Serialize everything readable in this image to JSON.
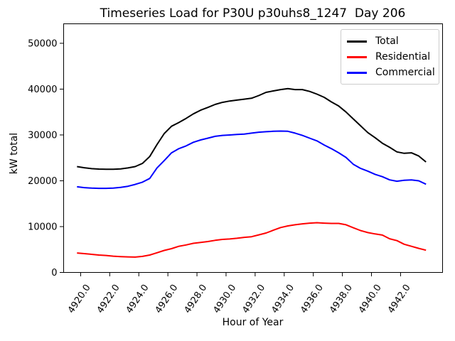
{
  "figure": {
    "title": "Timeseries Load for P30U p30uhs8_1247  Day 206"
  },
  "axes": {
    "xlabel": "Hour of Year",
    "ylabel": "kW total",
    "x_tick_labels": [
      "4920.0",
      "4922.0",
      "4924.0",
      "4926.0",
      "4928.0",
      "4930.0",
      "4932.0",
      "4934.0",
      "4936.0",
      "4938.0",
      "4940.0",
      "4942.0"
    ],
    "x_tick_values": [
      4920,
      4922,
      4924,
      4926,
      4928,
      4930,
      4932,
      4934,
      4936,
      4938,
      4940,
      4942
    ],
    "y_tick_labels": [
      "0",
      "10000",
      "20000",
      "30000",
      "40000",
      "50000"
    ],
    "y_tick_values": [
      0,
      10000,
      20000,
      30000,
      40000,
      50000
    ],
    "xlim": [
      4918.83,
      4944.89
    ],
    "ylim": [
      0,
      54250
    ]
  },
  "legend": {
    "position": "upper right",
    "entries": [
      {
        "label": "Total",
        "color": "#000000"
      },
      {
        "label": "Residential",
        "color": "#ff0000"
      },
      {
        "label": "Commercial",
        "color": "#0000ff"
      }
    ]
  },
  "chart_data": {
    "type": "line",
    "title": "Timeseries Load for P30U p30uhs8_1247  Day 206",
    "xlabel": "Hour of Year",
    "ylabel": "kW total",
    "xlim": [
      4918.83,
      4944.89
    ],
    "ylim": [
      0,
      54250
    ],
    "grid": false,
    "legend_position": "upper right",
    "x": [
      4919.75,
      4920.25,
      4920.75,
      4921.25,
      4921.75,
      4922.25,
      4922.75,
      4923.25,
      4923.75,
      4924.25,
      4924.75,
      4925.25,
      4925.75,
      4926.25,
      4926.75,
      4927.25,
      4927.75,
      4928.25,
      4928.75,
      4929.25,
      4929.75,
      4930.25,
      4930.75,
      4931.25,
      4931.75,
      4932.25,
      4932.75,
      4933.25,
      4933.75,
      4934.25,
      4934.75,
      4935.25,
      4935.75,
      4936.25,
      4936.75,
      4937.25,
      4937.75,
      4938.25,
      4938.75,
      4939.25,
      4939.75,
      4940.25,
      4940.75,
      4941.25,
      4941.75,
      4942.25,
      4942.75,
      4943.25,
      4943.75
    ],
    "series": [
      {
        "name": "Total",
        "color": "#000000",
        "values": [
          23100,
          22850,
          22650,
          22550,
          22500,
          22500,
          22600,
          22800,
          23100,
          23800,
          25300,
          27900,
          30300,
          31900,
          32700,
          33600,
          34600,
          35400,
          36000,
          36650,
          37100,
          37400,
          37600,
          37800,
          38000,
          38600,
          39300,
          39600,
          39900,
          40100,
          39900,
          39900,
          39500,
          38900,
          38200,
          37200,
          36300,
          35000,
          33500,
          32000,
          30500,
          29400,
          28200,
          27300,
          26300,
          26000,
          26100,
          25400,
          24100
        ]
      },
      {
        "name": "Residential",
        "color": "#ff0000",
        "values": [
          4250,
          4100,
          3950,
          3800,
          3700,
          3550,
          3450,
          3400,
          3350,
          3500,
          3800,
          4300,
          4800,
          5200,
          5700,
          6000,
          6350,
          6550,
          6750,
          7000,
          7200,
          7300,
          7450,
          7650,
          7800,
          8200,
          8600,
          9200,
          9800,
          10150,
          10400,
          10600,
          10750,
          10850,
          10750,
          10700,
          10700,
          10400,
          9750,
          9150,
          8700,
          8400,
          8150,
          7350,
          6950,
          6150,
          5700,
          5250,
          4850
        ]
      },
      {
        "name": "Commercial",
        "color": "#0000ff",
        "values": [
          18700,
          18500,
          18400,
          18350,
          18350,
          18400,
          18550,
          18800,
          19200,
          19700,
          20500,
          22800,
          24400,
          26100,
          27000,
          27600,
          28400,
          28900,
          29300,
          29700,
          29900,
          30000,
          30100,
          30200,
          30400,
          30600,
          30700,
          30800,
          30850,
          30800,
          30400,
          29900,
          29300,
          28700,
          27800,
          27000,
          26100,
          25100,
          23600,
          22700,
          22100,
          21400,
          20900,
          20200,
          19900,
          20100,
          20200,
          20000,
          19250
        ]
      }
    ]
  }
}
